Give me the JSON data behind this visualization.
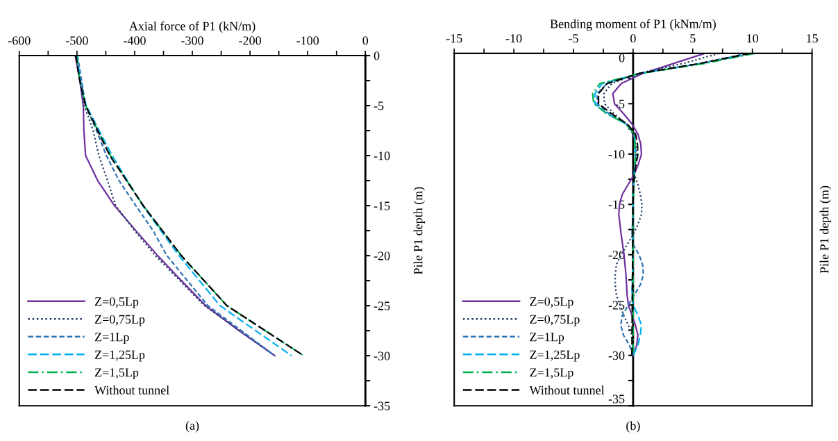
{
  "chart_data": [
    {
      "type": "line",
      "xlabel": "Axial force of P1 (kN/m)",
      "ylabel": "Pile P1 depth (m)",
      "annotations": [
        "(a)"
      ],
      "xlim": [
        -600,
        0
      ],
      "xticks": [
        -600,
        {
          "value": -550,
          "label": null
        },
        -500,
        {
          "value": -450,
          "label": null
        },
        -400,
        {
          "value": -350,
          "label": null
        },
        -300,
        {
          "value": -250,
          "label": null
        },
        -200,
        {
          "value": -150,
          "label": null
        },
        -100,
        {
          "value": -50,
          "label": null
        },
        0
      ],
      "ylim": [
        -35,
        0
      ],
      "yticks": [
        0,
        {
          "value": -2.5,
          "label": null
        },
        -5,
        {
          "value": -7.5,
          "label": null
        },
        -10,
        {
          "value": -12.5,
          "label": null
        },
        -15,
        {
          "value": -17.5,
          "label": null
        },
        -20,
        {
          "value": -22.5,
          "label": null
        },
        -25,
        {
          "value": -27.5,
          "label": null
        },
        -30,
        {
          "value": -32.5,
          "label": null
        },
        -35
      ],
      "grid": false,
      "legend": "bottom left",
      "series": [
        {
          "name": "Z=0,5Lp",
          "color": "#7030a0",
          "line_style": "solid",
          "x": [
            -503,
            -495,
            -489,
            -488,
            -485,
            -464,
            -435,
            -398,
            -360,
            -319,
            -277,
            -219,
            -157
          ],
          "values": [
            0,
            -2.5,
            -5,
            -7.5,
            -10,
            -12.5,
            -15,
            -17.5,
            -20,
            -22.5,
            -25,
            -27.5,
            -30
          ]
        },
        {
          "name": "Z=0,75Lp",
          "color": "#1f3864",
          "line_style": "dotted",
          "x": [
            -502,
            -488,
            -481,
            -472,
            -462,
            -447,
            -433,
            -400,
            -364,
            -279,
            -157
          ],
          "values": [
            0,
            -5,
            -6,
            -7.5,
            -10,
            -12.5,
            -15,
            -17.5,
            -20,
            -25,
            -30
          ]
        },
        {
          "name": "Z=1Lp",
          "color": "#2e75b6",
          "line_style": "dashed",
          "x": [
            -499,
            -485,
            -466,
            -449,
            -427,
            -398,
            -368,
            -344,
            -273,
            -157
          ],
          "values": [
            0,
            -5,
            -7.5,
            -10,
            -12.5,
            -15,
            -17.5,
            -20,
            -25,
            -30
          ]
        },
        {
          "name": "Z=1,25Lp",
          "color": "#00b0f0",
          "line_style": "longdash",
          "x": [
            -500,
            -494,
            -484,
            -439,
            -386,
            -323,
            -252,
            -128
          ],
          "values": [
            0,
            -2.5,
            -5,
            -10,
            -15,
            -20,
            -25,
            -30
          ]
        },
        {
          "name": "Z=1,5Lp",
          "color": "#00b050",
          "line_style": "dashdot",
          "x": [
            -501,
            -495,
            -485,
            -442,
            -385,
            -319,
            -240,
            -107
          ],
          "values": [
            0,
            -2.5,
            -5,
            -10,
            -15,
            -20,
            -25,
            -30
          ]
        },
        {
          "name": "Without tunnel",
          "color": "#000000",
          "line_style": "longdash",
          "x": [
            -502,
            -495,
            -485,
            -443,
            -385,
            -319,
            -240,
            -107
          ],
          "values": [
            0,
            -2.5,
            -5,
            -10,
            -15,
            -20,
            -25,
            -30
          ]
        }
      ]
    },
    {
      "type": "line",
      "xlabel": "Bending moment of P1 (kNm/m)",
      "ylabel": "Pile P1 depth (m)",
      "annotations": [
        "(b)"
      ],
      "xlim": [
        -15,
        15
      ],
      "xticks": [
        -15,
        {
          "value": -12.5,
          "label": null
        },
        -10,
        {
          "value": -7.5,
          "label": null
        },
        -5,
        {
          "value": -2.5,
          "label": null
        },
        0,
        {
          "value": 2.5,
          "label": null
        },
        5,
        {
          "value": 7.5,
          "label": null
        },
        10,
        {
          "value": 12.5,
          "label": null
        },
        15
      ],
      "ylim": [
        -35,
        0
      ],
      "yticks": [
        0,
        {
          "value": -2.5,
          "label": null
        },
        -5,
        {
          "value": -7.5,
          "label": null
        },
        -10,
        {
          "value": -12.5,
          "label": null
        },
        -15,
        {
          "value": -17.5,
          "label": null
        },
        -20,
        {
          "value": -22.5,
          "label": null
        },
        -25,
        {
          "value": -27.5,
          "label": null
        },
        -30,
        {
          "value": -32.5,
          "label": null
        },
        -35
      ],
      "grid": false,
      "legend": "bottom left",
      "series": [
        {
          "name": "Z=0,5Lp",
          "color": "#7030a0",
          "line_style": "solid",
          "x": [
            6.0,
            3.4,
            0.8,
            -1.0,
            -1.7,
            -1.56,
            -0.8,
            -0.1,
            0.4,
            0.64,
            0.7,
            0.44,
            0.1,
            -0.4,
            -0.9,
            -1.14,
            -1.2,
            -1.0,
            -0.76,
            -0.6,
            -0.5,
            -0.4,
            -0.1,
            0.2,
            0.4,
            0.3,
            0
          ],
          "values": [
            0,
            -1,
            -2,
            -3,
            -4,
            -5,
            -6,
            -7,
            -8,
            -9,
            -10,
            -11,
            -12,
            -13,
            -14,
            -15,
            -16,
            -18,
            -20,
            -22,
            -24,
            -25,
            -26,
            -27,
            -28,
            -29,
            -30
          ]
        },
        {
          "name": "Z=0,75Lp",
          "color": "#1f3864",
          "line_style": "dotted",
          "x": [
            7.2,
            4.2,
            0.4,
            -1.8,
            -2.45,
            -2.4,
            -1.6,
            -0.6,
            0,
            0.2,
            0.3,
            0.2,
            0.1,
            0.4,
            0.6,
            0.74,
            0.7,
            0.4,
            0,
            -0.5,
            -1.0,
            -1.4,
            -1.5,
            -1.5,
            -1.4,
            -1.1,
            -0.8,
            -0.4,
            -0.1,
            0,
            0
          ],
          "values": [
            0,
            -1,
            -2,
            -3,
            -4,
            -5,
            -6,
            -7,
            -8,
            -9,
            -10,
            -11,
            -12,
            -13,
            -14,
            -15,
            -16,
            -17,
            -18,
            -19,
            -20,
            -21,
            -22,
            -23,
            -24,
            -25,
            -26,
            -27,
            -28,
            -29,
            -30
          ]
        },
        {
          "name": "Z=1Lp",
          "color": "#2e75b6",
          "line_style": "dashed",
          "x": [
            9.6,
            5.6,
            0.6,
            -2.2,
            -3.0,
            -3.0,
            -2.0,
            -0.6,
            0.1,
            0.2,
            0.1,
            0,
            0,
            -0.1,
            0,
            0.5,
            0.8,
            0.86,
            0.6,
            0.1,
            -0.4,
            -0.9,
            -1.04,
            -0.8,
            -0.3,
            0
          ],
          "values": [
            0,
            -1,
            -2,
            -3,
            -4,
            -5,
            -6,
            -7,
            -8,
            -10,
            -12,
            -14,
            -16,
            -18,
            -19,
            -20,
            -21,
            -22,
            -23,
            -24,
            -25,
            -26,
            -27,
            -28,
            -29,
            -30
          ]
        },
        {
          "name": "Z=1,25Lp",
          "color": "#00b0f0",
          "line_style": "longdash",
          "x": [
            10.0,
            5.8,
            0.6,
            -2.6,
            -3.2,
            -3.2,
            -2.2,
            -0.6,
            0.1,
            0.2,
            0,
            0,
            -0.1,
            0,
            0.4,
            0.7,
            0.6,
            0.4,
            0
          ],
          "values": [
            0,
            -1,
            -2,
            -3,
            -4,
            -5,
            -6,
            -7,
            -8,
            -10,
            -14,
            -20,
            -24,
            -25,
            -26,
            -27,
            -28,
            -29,
            -30
          ]
        },
        {
          "name": "Z=1,5Lp",
          "color": "#00b050",
          "line_style": "dashdot",
          "x": [
            10.2,
            6.0,
            0.6,
            -2.8,
            -3.4,
            -3.3,
            -2.2,
            -0.6,
            0.1,
            0.2,
            0,
            0
          ],
          "values": [
            0,
            -1,
            -2,
            -3,
            -4,
            -5,
            -6,
            -7,
            -8,
            -10,
            -15,
            -30
          ]
        },
        {
          "name": "Without tunnel",
          "color": "#000000",
          "line_style": "longdash",
          "x": [
            9.8,
            5.6,
            0.5,
            -2.2,
            -2.9,
            -2.9,
            -1.8,
            -0.5,
            0.2,
            0.36,
            0.4,
            0.1,
            0,
            -0.1
          ],
          "values": [
            0,
            -1,
            -2,
            -3,
            -4,
            -5,
            -6,
            -7,
            -8,
            -9,
            -10,
            -12,
            -14,
            -30
          ]
        }
      ]
    }
  ]
}
